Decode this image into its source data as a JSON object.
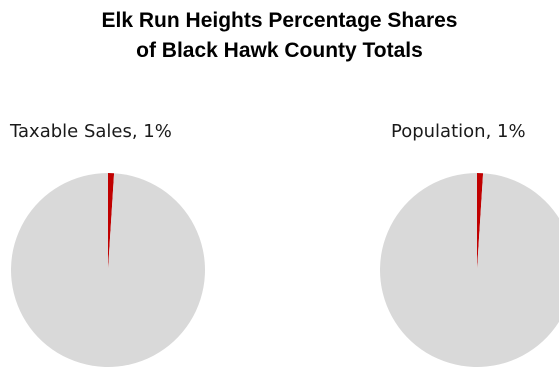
{
  "chart_data": [
    {
      "type": "pie",
      "title": "Elk Run Heights Percentage Shares of Black Hawk County Totals",
      "label": "Taxable Sales, 1%",
      "slices": [
        {
          "name": "Taxable Sales",
          "value": 1,
          "color": "#c00000"
        },
        {
          "name": "",
          "value": 99,
          "color": "#d9d9d9"
        }
      ]
    },
    {
      "type": "pie",
      "title": "Elk Run Heights Percentage Shares of Black Hawk County Totals",
      "label": "Population, 1%",
      "slices": [
        {
          "name": "Population",
          "value": 1,
          "color": "#c00000"
        },
        {
          "name": "",
          "value": 99,
          "color": "#d9d9d9"
        }
      ]
    }
  ],
  "title_lines": [
    "Elk Run Heights Percentage Shares",
    "of Black Hawk County Totals"
  ]
}
